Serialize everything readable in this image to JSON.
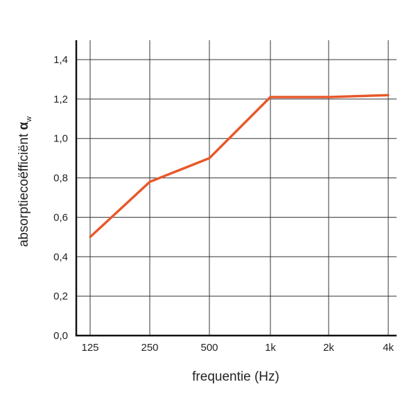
{
  "chart_data": {
    "type": "line",
    "xlabel": "frequentie (Hz)",
    "ylabel": "absorptiecoëfficiënt αw",
    "ylabel_main": "absorptiecoëfficiënt ",
    "ylabel_symbol": "α",
    "ylabel_subscript": "w",
    "x": [
      "125",
      "250",
      "500",
      "1k",
      "2k",
      "4k"
    ],
    "ylim": [
      0,
      1.4
    ],
    "y_ticks": [
      "0,0",
      "0,2",
      "0,4",
      "0,6",
      "0,8",
      "1,0",
      "1,2",
      "1,4"
    ],
    "grid": true,
    "series": [
      {
        "values": [
          0.5,
          0.78,
          0.9,
          1.21,
          1.21,
          1.22
        ],
        "color": "#e8582a"
      }
    ]
  }
}
